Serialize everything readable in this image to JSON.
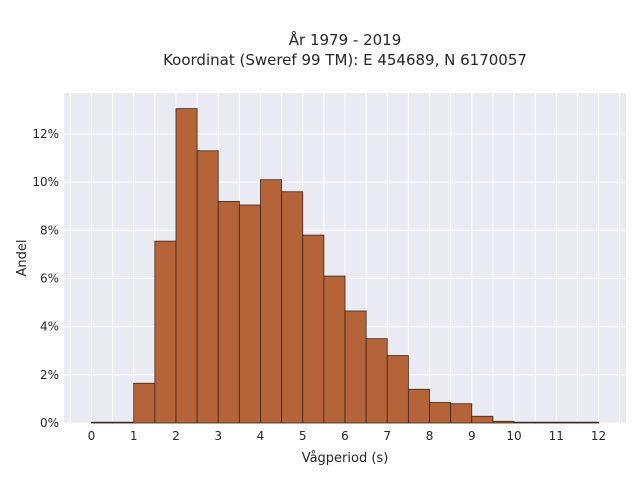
{
  "chart_data": {
    "type": "bar",
    "title_line1": "År 1979 - 2019",
    "title_line2": "Koordinat (Sweref 99 TM): E 454689, N 6170057",
    "xlabel": "Vågperiod (s)",
    "ylabel": "Andel",
    "bin_width": 0.5,
    "x": [
      0,
      0.5,
      1,
      1.5,
      2,
      2.5,
      3,
      3.5,
      4,
      4.5,
      5,
      5.5,
      6,
      6.5,
      7,
      7.5,
      8,
      8.5,
      9,
      9.5,
      10,
      10.5,
      11,
      11.5
    ],
    "values": [
      0.0,
      0.0,
      1.65,
      7.55,
      13.05,
      11.3,
      9.2,
      9.05,
      10.1,
      9.6,
      7.8,
      6.1,
      4.65,
      3.5,
      2.8,
      1.4,
      0.85,
      0.8,
      0.28,
      0.07,
      0.02,
      0.01,
      0.01,
      0.01
    ],
    "xlim": [
      -0.65,
      12.65
    ],
    "ylim": [
      0,
      13.7
    ],
    "x_ticks": [
      0,
      1,
      2,
      3,
      4,
      5,
      6,
      7,
      8,
      9,
      10,
      11,
      12
    ],
    "x_tick_labels": [
      "0",
      "1",
      "2",
      "3",
      "4",
      "5",
      "6",
      "7",
      "8",
      "9",
      "10",
      "11",
      "12"
    ],
    "y_ticks": [
      0,
      2,
      4,
      6,
      8,
      10,
      12
    ],
    "y_tick_labels": [
      "0%",
      "2%",
      "4%",
      "6%",
      "8%",
      "10%",
      "12%"
    ],
    "grid": true,
    "bar_color": "#b5643a",
    "bar_edge_color": "#3a2418",
    "plot_background": "#eaeaf2",
    "grid_color": "#ffffff"
  }
}
